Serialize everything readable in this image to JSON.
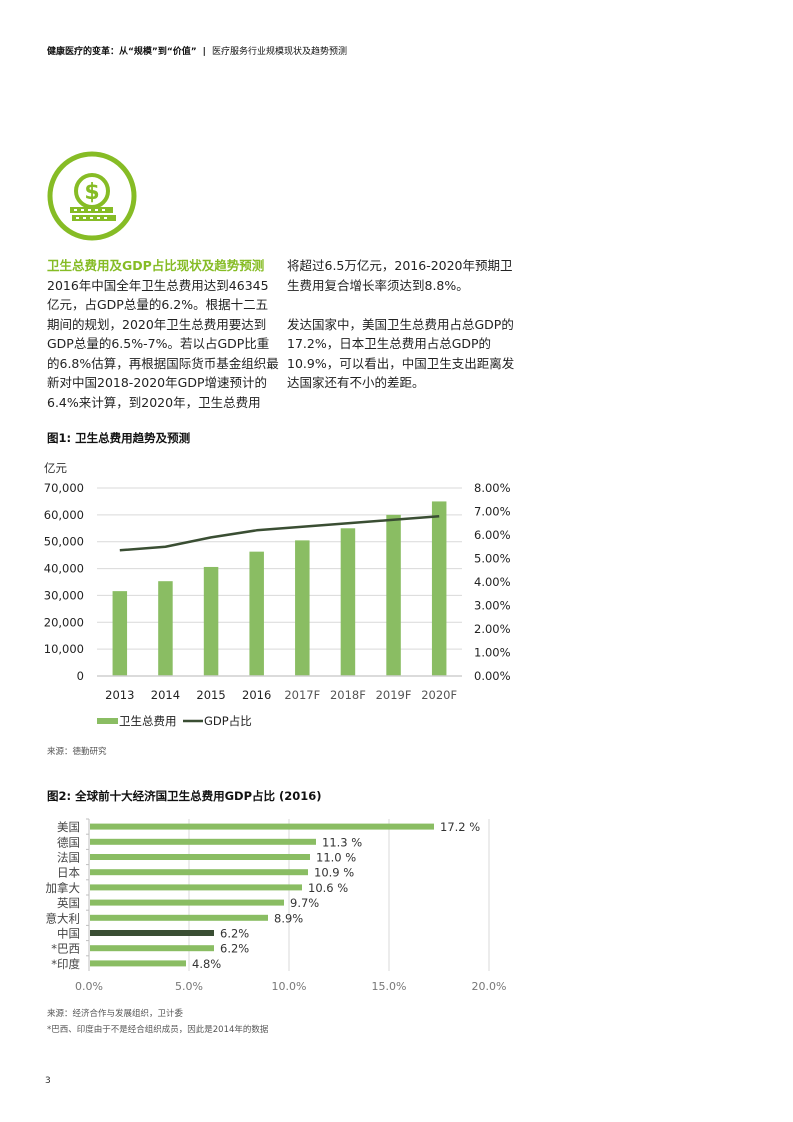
{
  "header": {
    "title_bold": "健康医疗的变革：从“规模”到“价值”",
    "separator": "|",
    "subtitle": "医疗服务行业规模现状及趋势预测"
  },
  "icon": {
    "name": "dollar-coin-stack-icon",
    "color": "#86bc25"
  },
  "body": {
    "section_heading": "卫生总费用及GDP占比现状及趋势预测",
    "left_paragraph": "2016年中国全年卫生总费用达到46345亿元，占GDP总量的6.2%。根据十二五期间的规划，2020年卫生总费用要达到GDP总量的6.5%-7%。若以占GDP比重的6.8%估算，再根据国际货币基金组织最新对中国2018-2020年GDP增速预计的6.4%来计算，到2020年，卫生总费用",
    "right_paragraph_1": "将超过6.5万亿元，2016-2020年预期卫生费用复合增长率须达到8.8%。",
    "right_paragraph_2": "发达国家中，美国卫生总费用占总GDP的17.2%，日本卫生总费用占总GDP的10.9%，可以看出，中国卫生支出距离发达国家还有不小的差距。"
  },
  "figure1": {
    "title": "图1: 卫生总费用趋势及预测",
    "source": "来源：德勤研究"
  },
  "figure2": {
    "title": "图2: 全球前十大经济国卫生总费用GDP占比 (2016)",
    "source": "来源：经济合作与发展组织，卫计委",
    "footnote": "*巴西、印度由于不是经合组织成员，因此是2014年的数据"
  },
  "page_number": "3",
  "colors": {
    "green": "#86bc25",
    "bar_green": "#8abd63",
    "dark_green": "#3a4e33",
    "grid": "#d9d9d9"
  },
  "chart_data": [
    {
      "type": "bar+line",
      "title": "图1: 卫生总费用趋势及预测",
      "categories": [
        "2013",
        "2014",
        "2015",
        "2016",
        "2017F",
        "2018F",
        "2019F",
        "2020F"
      ],
      "series": [
        {
          "name": "卫生总费用",
          "type": "bar",
          "axis": "left",
          "values": [
            31600,
            35300,
            40600,
            46300,
            50500,
            55000,
            60000,
            65000
          ]
        },
        {
          "name": "GDP占比",
          "type": "line",
          "axis": "right",
          "values": [
            5.35,
            5.5,
            5.9,
            6.2,
            6.35,
            6.5,
            6.65,
            6.8
          ]
        }
      ],
      "ylabel": "亿元",
      "ylim": [
        0,
        70000
      ],
      "yticks": [
        "0",
        "10,000",
        "20,000",
        "30,000",
        "40,000",
        "50,000",
        "60,000",
        "70,000"
      ],
      "y2lim": [
        0,
        8
      ],
      "y2ticks": [
        "0.00%",
        "1.00%",
        "2.00%",
        "3.00%",
        "4.00%",
        "5.00%",
        "6.00%",
        "7.00%",
        "8.00%"
      ],
      "grid": true,
      "legend_position": "bottom-left"
    },
    {
      "type": "bar",
      "orientation": "horizontal",
      "title": "图2: 全球前十大经济国卫生总费用GDP占比 (2016)",
      "categories": [
        "美国",
        "德国",
        "法国",
        "日本",
        "加拿大",
        "英国",
        "意大利",
        "中国",
        "*巴西",
        "*印度"
      ],
      "values": [
        17.2,
        11.3,
        11.0,
        10.9,
        10.6,
        9.7,
        8.9,
        6.2,
        6.2,
        4.8
      ],
      "value_labels": [
        "17.2 %",
        "11.3 %",
        "11.0 %",
        "10.9 %",
        "10.6 %",
        "9.7%",
        "8.9%",
        "6.2%",
        "6.2%",
        "4.8%"
      ],
      "highlight": "中国",
      "xlim": [
        0,
        20
      ],
      "xticks": [
        "0.0%",
        "5.0%",
        "10.0%",
        "15.0%",
        "20.0%"
      ],
      "grid": true
    }
  ]
}
